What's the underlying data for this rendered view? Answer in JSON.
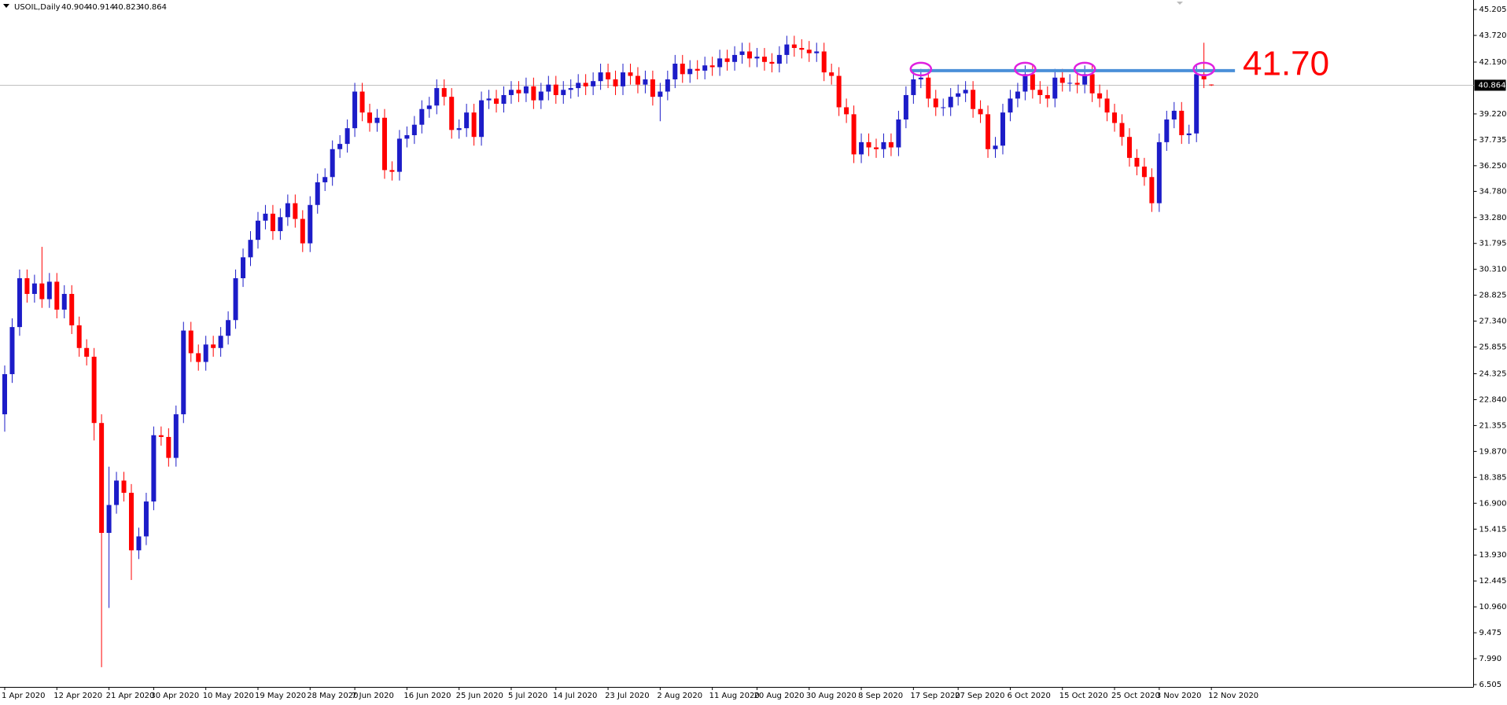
{
  "chart_data": {
    "type": "candlestick",
    "title": "USOIL,Daily",
    "up_color": "#1c1cc8",
    "down_color": "#ff0000",
    "grid": false,
    "categories": [
      "1 Apr 2020",
      null,
      null,
      null,
      null,
      null,
      null,
      "12 Apr 2020",
      null,
      null,
      null,
      null,
      null,
      null,
      "21 Apr 2020",
      null,
      null,
      null,
      null,
      null,
      "30 Apr 2020",
      null,
      null,
      null,
      null,
      null,
      null,
      "10 May 2020",
      null,
      null,
      null,
      null,
      null,
      null,
      "19 May 2020",
      null,
      null,
      null,
      null,
      null,
      null,
      "28 May 2020",
      null,
      null,
      null,
      null,
      null,
      "7 Jun 2020",
      null,
      null,
      null,
      null,
      null,
      null,
      "16 Jun 2020",
      null,
      null,
      null,
      null,
      null,
      null,
      "25 Jun 2020",
      null,
      null,
      null,
      null,
      null,
      null,
      "5 Jul 2020",
      null,
      null,
      null,
      null,
      null,
      "14 Jul 2020",
      null,
      null,
      null,
      null,
      null,
      null,
      "23 Jul 2020",
      null,
      null,
      null,
      null,
      null,
      null,
      "2 Aug 2020",
      null,
      null,
      null,
      null,
      null,
      null,
      "11 Aug 2020",
      null,
      null,
      null,
      null,
      null,
      "20 Aug 2020",
      null,
      null,
      null,
      null,
      null,
      null,
      "30 Aug 2020",
      null,
      null,
      null,
      null,
      null,
      null,
      "8 Sep 2020",
      null,
      null,
      null,
      null,
      null,
      null,
      "17 Sep 2020",
      null,
      null,
      null,
      null,
      null,
      "27 Sep 2020",
      null,
      null,
      null,
      null,
      null,
      null,
      "6 Oct 2020",
      null,
      null,
      null,
      null,
      null,
      null,
      "15 Oct 2020",
      null,
      null,
      null,
      null,
      null,
      null,
      "25 Oct 2020",
      null,
      null,
      null,
      null,
      null,
      "3 Nov 2020",
      null,
      null,
      null,
      null,
      null,
      null,
      "12 Nov 2020"
    ],
    "open": [
      22.0,
      24.3,
      27.0,
      29.8,
      28.9,
      29.5,
      28.6,
      29.6,
      28.0,
      28.9,
      27.1,
      25.8,
      25.3,
      21.5,
      15.2,
      16.8,
      18.2,
      17.5,
      14.2,
      15.0,
      17.0,
      20.8,
      20.7,
      19.5,
      22.0,
      26.8,
      25.5,
      25.0,
      26.0,
      25.8,
      26.5,
      27.4,
      29.8,
      31.0,
      32.0,
      33.1,
      33.5,
      32.5,
      33.3,
      34.1,
      33.2,
      31.8,
      34.0,
      35.3,
      35.6,
      37.2,
      37.5,
      38.4,
      40.5,
      39.3,
      38.7,
      39.0,
      36.0,
      35.9,
      37.8,
      38.0,
      38.6,
      39.5,
      39.7,
      40.7,
      40.2,
      38.3,
      38.4,
      39.3,
      37.9,
      40.0,
      40.1,
      39.8,
      40.3,
      40.6,
      40.4,
      40.8,
      40.0,
      40.5,
      40.9,
      40.3,
      40.6,
      40.7,
      41.0,
      40.8,
      41.1,
      41.6,
      41.2,
      40.8,
      41.6,
      41.4,
      40.9,
      41.2,
      40.2,
      40.5,
      41.2,
      42.1,
      41.5,
      41.8,
      41.7,
      42.0,
      41.9,
      42.4,
      42.2,
      42.6,
      42.8,
      42.4,
      42.5,
      42.2,
      42.1,
      42.6,
      43.2,
      43.0,
      42.9,
      42.7,
      42.8,
      41.6,
      41.4,
      39.6,
      39.2,
      36.9,
      37.6,
      37.3,
      37.2,
      37.6,
      37.3,
      38.9,
      40.3,
      41.2,
      41.3,
      40.1,
      39.6,
      39.6,
      40.2,
      40.4,
      40.6,
      39.5,
      39.2,
      37.2,
      37.4,
      39.3,
      40.1,
      40.5,
      41.5,
      40.6,
      40.3,
      40.1,
      41.3,
      41.0,
      41.0,
      40.9,
      41.5,
      40.4,
      40.1,
      39.3,
      38.7,
      37.9,
      36.7,
      36.2,
      35.6,
      34.1,
      37.6,
      38.9,
      39.4,
      38.0,
      38.1,
      41.5,
      40.904
    ],
    "high": [
      24.8,
      27.5,
      30.3,
      30.3,
      30.0,
      31.6,
      30.1,
      30.1,
      29.4,
      29.4,
      27.6,
      26.3,
      25.8,
      22.0,
      19.0,
      18.7,
      18.7,
      18.0,
      15.5,
      17.5,
      21.3,
      21.3,
      21.2,
      22.5,
      27.3,
      27.3,
      26.0,
      26.5,
      26.5,
      27.0,
      27.9,
      30.3,
      31.5,
      32.5,
      33.6,
      34.0,
      34.0,
      33.8,
      34.6,
      34.6,
      33.7,
      34.5,
      35.8,
      36.1,
      37.7,
      38.0,
      38.9,
      41.0,
      41.0,
      39.8,
      39.5,
      39.5,
      36.5,
      38.3,
      38.5,
      39.1,
      40.0,
      40.2,
      41.2,
      41.2,
      40.7,
      38.9,
      39.8,
      39.8,
      40.5,
      40.6,
      40.6,
      40.8,
      41.1,
      41.1,
      41.3,
      41.3,
      41.0,
      41.4,
      41.4,
      41.1,
      41.2,
      41.5,
      41.5,
      41.6,
      42.1,
      42.1,
      41.7,
      42.1,
      42.1,
      41.9,
      41.7,
      41.7,
      41.0,
      41.7,
      42.6,
      42.6,
      42.3,
      42.3,
      42.5,
      42.5,
      42.9,
      42.9,
      43.1,
      43.3,
      43.3,
      43.0,
      43.0,
      42.7,
      43.1,
      43.7,
      43.7,
      43.5,
      43.4,
      43.3,
      43.3,
      42.1,
      41.9,
      40.1,
      39.7,
      38.1,
      38.1,
      37.8,
      38.1,
      38.1,
      39.4,
      40.8,
      41.7,
      41.8,
      41.8,
      40.6,
      40.1,
      40.7,
      40.9,
      41.1,
      41.1,
      40.0,
      39.7,
      37.9,
      39.8,
      40.6,
      41.0,
      42.0,
      42.0,
      41.1,
      40.8,
      41.8,
      41.8,
      41.5,
      41.5,
      42.0,
      42.0,
      40.9,
      40.6,
      39.8,
      39.2,
      38.4,
      37.2,
      36.7,
      36.1,
      38.1,
      39.4,
      39.9,
      39.9,
      38.6,
      42.0,
      43.3,
      40.914
    ],
    "low": [
      21.0,
      23.8,
      26.5,
      28.4,
      28.4,
      28.1,
      28.1,
      27.5,
      27.5,
      26.6,
      25.3,
      24.8,
      20.5,
      7.5,
      10.9,
      16.3,
      17.0,
      12.5,
      13.7,
      14.5,
      16.5,
      20.2,
      19.0,
      19.0,
      21.5,
      25.0,
      24.5,
      24.5,
      25.3,
      25.3,
      26.0,
      26.9,
      29.3,
      30.5,
      31.5,
      32.6,
      32.0,
      32.0,
      32.8,
      32.7,
      31.3,
      31.3,
      33.5,
      34.8,
      35.1,
      36.7,
      37.0,
      37.9,
      38.8,
      38.2,
      38.2,
      35.5,
      35.4,
      35.4,
      37.3,
      37.5,
      38.1,
      39.0,
      39.2,
      39.7,
      37.8,
      37.8,
      37.9,
      37.4,
      37.4,
      39.5,
      39.3,
      39.3,
      39.8,
      39.9,
      39.9,
      39.5,
      39.5,
      40.0,
      39.8,
      39.8,
      40.1,
      40.2,
      40.3,
      40.3,
      40.6,
      40.7,
      40.3,
      40.3,
      40.9,
      40.4,
      40.4,
      39.7,
      38.8,
      40.0,
      40.7,
      41.0,
      41.0,
      41.2,
      41.2,
      41.4,
      41.4,
      41.7,
      41.7,
      42.1,
      41.9,
      41.9,
      41.7,
      41.6,
      41.6,
      42.1,
      42.5,
      42.4,
      42.2,
      42.2,
      41.1,
      40.9,
      39.1,
      38.7,
      36.4,
      36.4,
      36.8,
      36.7,
      36.7,
      36.8,
      36.8,
      38.4,
      39.8,
      40.7,
      39.6,
      39.1,
      39.1,
      39.1,
      39.7,
      39.9,
      39.0,
      38.7,
      36.7,
      36.7,
      36.9,
      38.8,
      39.6,
      40.0,
      40.1,
      39.8,
      39.6,
      39.6,
      40.5,
      40.5,
      40.4,
      40.4,
      39.9,
      39.6,
      38.8,
      38.2,
      37.4,
      36.2,
      35.7,
      35.1,
      33.6,
      33.6,
      37.1,
      38.4,
      37.5,
      37.5,
      37.6,
      40.7,
      40.823
    ],
    "close": [
      24.3,
      27.0,
      29.8,
      28.9,
      29.5,
      28.6,
      29.6,
      28.0,
      28.9,
      27.1,
      25.8,
      25.3,
      21.5,
      15.2,
      16.8,
      18.2,
      17.5,
      14.2,
      15.0,
      17.0,
      20.8,
      20.7,
      19.5,
      22.0,
      26.8,
      25.5,
      25.0,
      26.0,
      25.8,
      26.5,
      27.4,
      29.8,
      31.0,
      32.0,
      33.1,
      33.5,
      32.5,
      33.3,
      34.1,
      33.2,
      31.8,
      34.0,
      35.3,
      35.6,
      37.2,
      37.5,
      38.4,
      40.5,
      39.3,
      38.7,
      39.0,
      36.0,
      35.9,
      37.8,
      38.0,
      38.6,
      39.5,
      39.7,
      40.7,
      40.2,
      38.3,
      38.4,
      39.3,
      37.9,
      40.0,
      40.1,
      39.8,
      40.3,
      40.6,
      40.4,
      40.8,
      40.0,
      40.5,
      40.9,
      40.3,
      40.6,
      40.7,
      41.0,
      40.8,
      41.1,
      41.6,
      41.2,
      40.8,
      41.6,
      41.4,
      40.9,
      41.2,
      40.2,
      40.5,
      41.2,
      42.1,
      41.5,
      41.8,
      41.7,
      42.0,
      41.9,
      42.4,
      42.2,
      42.6,
      42.8,
      42.4,
      42.5,
      42.2,
      42.1,
      42.6,
      43.2,
      43.0,
      42.9,
      42.7,
      42.8,
      41.6,
      41.4,
      39.6,
      39.2,
      36.9,
      37.6,
      37.3,
      37.2,
      37.6,
      37.3,
      38.9,
      40.3,
      41.2,
      41.3,
      40.1,
      39.6,
      39.6,
      40.2,
      40.4,
      40.6,
      39.5,
      39.2,
      37.2,
      37.4,
      39.3,
      40.1,
      40.5,
      41.5,
      40.6,
      40.3,
      40.1,
      41.3,
      41.0,
      41.0,
      40.9,
      41.5,
      40.4,
      40.1,
      39.3,
      38.7,
      37.9,
      36.7,
      36.2,
      35.6,
      34.1,
      37.6,
      38.9,
      39.4,
      38.0,
      38.1,
      41.5,
      41.2,
      40.864
    ],
    "ylim": [
      6.37,
      45.75
    ],
    "yticks": [
      45.205,
      {
        "value": 43.72,
        "label": "43.720"
      },
      {
        "value": 42.19,
        "label": "42.190"
      },
      {
        "value": 39.22,
        "label": "39.220"
      },
      37.735,
      {
        "value": 36.25,
        "label": "36.250"
      },
      {
        "value": 34.78,
        "label": "34.780"
      },
      {
        "value": 33.28,
        "label": "33.280"
      },
      31.795,
      {
        "value": 30.31,
        "label": "30.310"
      },
      28.825,
      {
        "value": 27.34,
        "label": "27.340"
      },
      25.855,
      24.325,
      {
        "value": 22.84,
        "label": "22.840"
      },
      21.355,
      {
        "value": 19.87,
        "label": "19.870"
      },
      18.385,
      {
        "value": 16.9,
        "label": "16.900"
      },
      15.415,
      {
        "value": 13.93,
        "label": "13.930"
      },
      12.445,
      {
        "value": 10.96,
        "label": "10.960"
      },
      9.475,
      {
        "value": 7.99,
        "label": "7.990"
      },
      6.505
    ],
    "resistance": {
      "value": 41.7,
      "label": "41.70",
      "color": "#4a8fd8"
    }
  }
}
